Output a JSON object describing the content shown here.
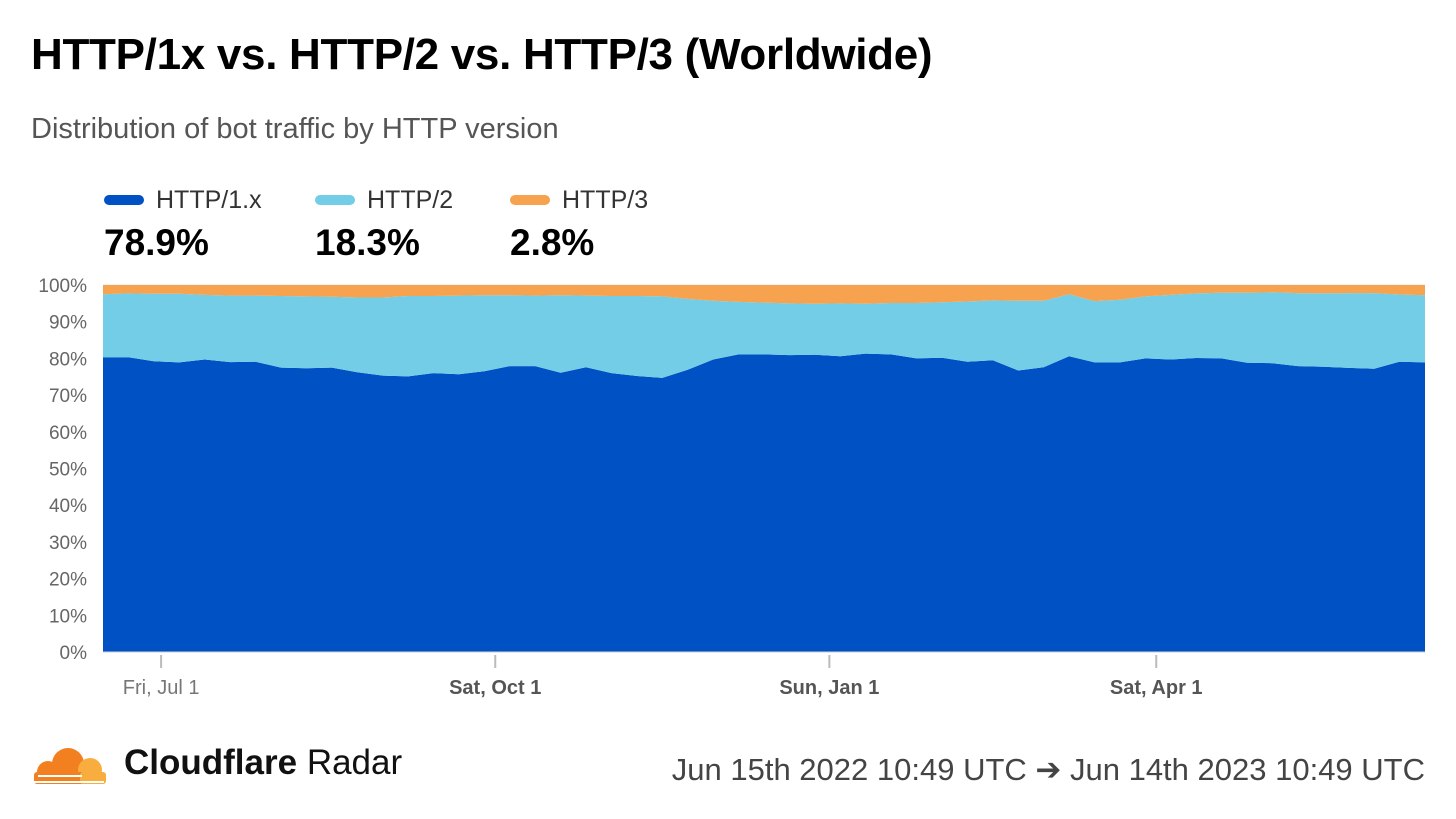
{
  "title": "HTTP/1x vs. HTTP/2 vs. HTTP/3 (Worldwide)",
  "subtitle": "Distribution of bot traffic by HTTP version",
  "legend": [
    {
      "name": "HTTP/1.x",
      "value": "78.9%",
      "color": "#0051c3"
    },
    {
      "name": "HTTP/2",
      "value": "18.3%",
      "color": "#73cde7"
    },
    {
      "name": "HTTP/3",
      "value": "2.8%",
      "color": "#f6a24f"
    }
  ],
  "footer": {
    "brand_bold": "Cloudflare",
    "brand_rest": "Radar",
    "date_range": "Jun 15th 2022 10:49 UTC ➔ Jun 14th 2023 10:49 UTC"
  },
  "chart_data": {
    "type": "area",
    "stacked": true,
    "x": [
      "2022-06-15",
      "2022-06-22",
      "2022-06-29",
      "2022-07-06",
      "2022-07-13",
      "2022-07-20",
      "2022-07-27",
      "2022-08-03",
      "2022-08-10",
      "2022-08-17",
      "2022-08-24",
      "2022-08-31",
      "2022-09-07",
      "2022-09-14",
      "2022-09-21",
      "2022-09-28",
      "2022-10-05",
      "2022-10-12",
      "2022-10-19",
      "2022-10-26",
      "2022-11-02",
      "2022-11-09",
      "2022-11-16",
      "2022-11-23",
      "2022-11-30",
      "2022-12-07",
      "2022-12-14",
      "2022-12-21",
      "2022-12-28",
      "2023-01-04",
      "2023-01-11",
      "2023-01-18",
      "2023-01-25",
      "2023-02-01",
      "2023-02-08",
      "2023-02-15",
      "2023-02-22",
      "2023-03-01",
      "2023-03-08",
      "2023-03-15",
      "2023-03-22",
      "2023-03-29",
      "2023-04-05",
      "2023-04-12",
      "2023-04-19",
      "2023-04-26",
      "2023-05-03",
      "2023-05-10",
      "2023-05-17",
      "2023-05-24",
      "2023-05-31",
      "2023-06-07",
      "2023-06-14"
    ],
    "x_ticks": [
      {
        "date": "2022-07-01",
        "label": "Fri, Jul 1",
        "bold": false
      },
      {
        "date": "2022-10-01",
        "label": "Sat, Oct 1",
        "bold": true
      },
      {
        "date": "2023-01-01",
        "label": "Sun, Jan 1",
        "bold": true
      },
      {
        "date": "2023-04-01",
        "label": "Sat, Apr 1",
        "bold": true
      }
    ],
    "y_ticks": [
      "0%",
      "10%",
      "20%",
      "30%",
      "40%",
      "50%",
      "60%",
      "70%",
      "80%",
      "90%",
      "100%"
    ],
    "ylim": [
      0,
      100
    ],
    "series": [
      {
        "name": "HTTP/1.x",
        "color": "#0051c3",
        "values": [
          80.3,
          80.3,
          79.2,
          78.9,
          79.7,
          79.0,
          79.1,
          77.5,
          77.3,
          77.5,
          76.2,
          75.3,
          75.1,
          76.0,
          75.7,
          76.5,
          77.9,
          77.9,
          76.1,
          77.6,
          76.0,
          75.2,
          74.7,
          76.9,
          79.7,
          81.1,
          81.1,
          80.9,
          81.0,
          80.6,
          81.3,
          81.1,
          80.0,
          80.2,
          79.1,
          79.5,
          76.7,
          77.6,
          80.6,
          78.9,
          78.9,
          80.0,
          79.7,
          80.1,
          80.0,
          78.8,
          78.7,
          77.9,
          77.7,
          77.4,
          77.2,
          79.1,
          78.9
        ]
      },
      {
        "name": "HTTP/2",
        "color": "#73cde7",
        "values": [
          17.2,
          17.4,
          18.4,
          18.7,
          17.6,
          18.1,
          18.0,
          19.5,
          19.6,
          19.3,
          20.4,
          21.3,
          21.9,
          21.0,
          21.4,
          20.7,
          19.3,
          19.2,
          21.1,
          19.5,
          21.0,
          21.8,
          22.2,
          19.3,
          16.0,
          14.3,
          14.1,
          14.1,
          13.9,
          14.4,
          13.6,
          14.0,
          15.1,
          15.1,
          16.4,
          16.3,
          19.0,
          18.1,
          16.9,
          16.7,
          17.1,
          16.9,
          17.6,
          17.6,
          17.9,
          19.1,
          19.3,
          19.9,
          20.0,
          20.4,
          20.6,
          18.3,
          18.3
        ]
      },
      {
        "name": "HTTP/3",
        "color": "#f6a24f",
        "values": [
          2.5,
          2.3,
          2.4,
          2.4,
          2.7,
          2.9,
          2.9,
          3.0,
          3.1,
          3.2,
          3.4,
          3.4,
          3.0,
          3.0,
          2.9,
          2.8,
          2.8,
          2.9,
          2.8,
          2.9,
          3.0,
          3.0,
          3.1,
          3.8,
          4.3,
          4.6,
          4.8,
          5.0,
          5.1,
          5.0,
          5.1,
          4.9,
          4.9,
          4.7,
          4.5,
          4.2,
          4.3,
          4.3,
          2.5,
          4.4,
          4.0,
          3.1,
          2.7,
          2.3,
          2.1,
          2.1,
          2.0,
          2.2,
          2.3,
          2.2,
          2.2,
          2.6,
          2.8
        ]
      }
    ],
    "grid": true,
    "legend_placement": "top-left"
  }
}
